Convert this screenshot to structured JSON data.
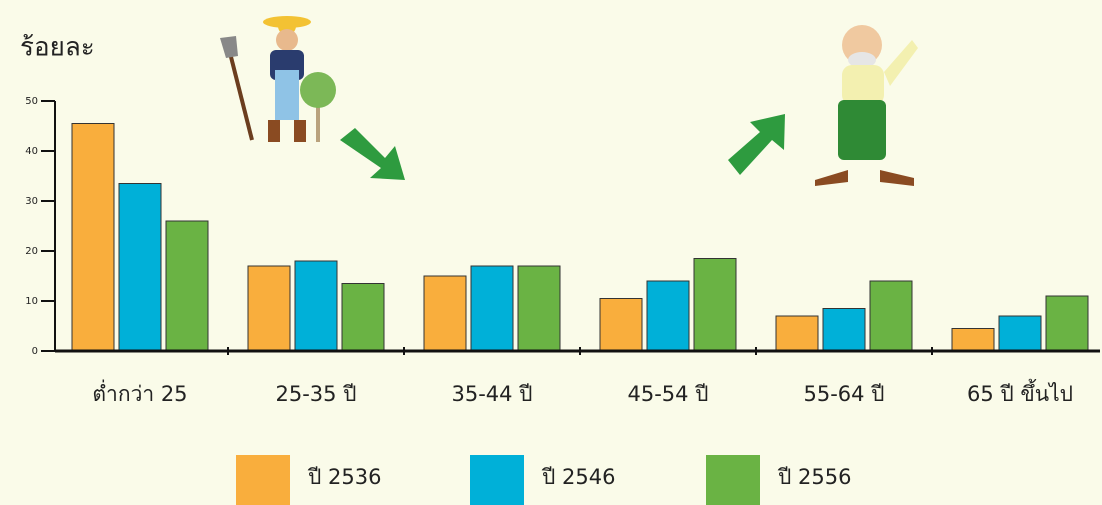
{
  "chart_data": {
    "type": "bar",
    "y_label": "ร้อยละ",
    "categories": [
      "ต่ำกว่า 25",
      "25-35 ปี",
      "35-44 ปี",
      "45-54 ปี",
      "55-64 ปี",
      "65 ปี ขึ้นไป"
    ],
    "series": [
      {
        "name": "ปี 2536",
        "color": "#f9ae3d",
        "values": [
          45.5,
          17,
          15,
          10.5,
          7,
          4.5
        ]
      },
      {
        "name": "ปี 2546",
        "color": "#00b0d8",
        "values": [
          33.5,
          18,
          17,
          14,
          8.5,
          7
        ]
      },
      {
        "name": "ปี 2556",
        "color": "#6ab344",
        "values": [
          26,
          13.5,
          17,
          18.5,
          14,
          11
        ]
      }
    ],
    "ylim": [
      0,
      50
    ],
    "yticks": [
      0,
      10,
      20,
      30,
      40,
      50
    ],
    "grid": false,
    "legend": "bottom"
  }
}
